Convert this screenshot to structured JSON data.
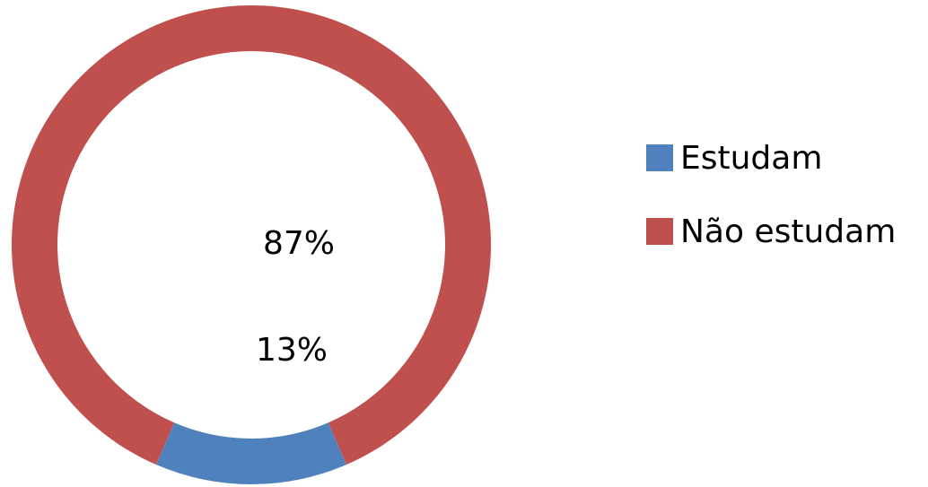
{
  "chart_data": {
    "type": "pie",
    "variant": "donut",
    "title": "",
    "categories": [
      "Estudam",
      "Não estudam"
    ],
    "values": [
      13,
      87
    ],
    "labels": [
      "13%",
      "87%"
    ],
    "colors": [
      "#4F81BD",
      "#C0504D"
    ],
    "legend": "right"
  }
}
